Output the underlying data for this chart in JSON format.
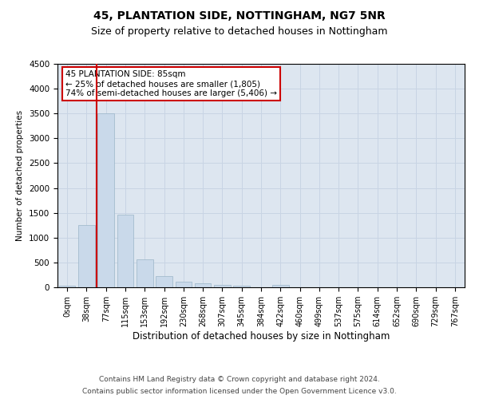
{
  "title": "45, PLANTATION SIDE, NOTTINGHAM, NG7 5NR",
  "subtitle": "Size of property relative to detached houses in Nottingham",
  "xlabel": "Distribution of detached houses by size in Nottingham",
  "ylabel": "Number of detached properties",
  "bar_labels": [
    "0sqm",
    "38sqm",
    "77sqm",
    "115sqm",
    "153sqm",
    "192sqm",
    "230sqm",
    "268sqm",
    "307sqm",
    "345sqm",
    "384sqm",
    "422sqm",
    "460sqm",
    "499sqm",
    "537sqm",
    "575sqm",
    "614sqm",
    "652sqm",
    "690sqm",
    "729sqm",
    "767sqm"
  ],
  "bar_values": [
    30,
    1250,
    3500,
    1470,
    570,
    230,
    110,
    75,
    55,
    30,
    0,
    55,
    0,
    0,
    0,
    0,
    0,
    0,
    0,
    0,
    0
  ],
  "bar_color": "#c9d9ea",
  "bar_edge_color": "#9ab4c8",
  "annotation_text": "45 PLANTATION SIDE: 85sqm\n← 25% of detached houses are smaller (1,805)\n74% of semi-detached houses are larger (5,406) →",
  "annotation_box_color": "white",
  "annotation_box_edge_color": "#cc0000",
  "ylim": [
    0,
    4500
  ],
  "yticks": [
    0,
    500,
    1000,
    1500,
    2000,
    2500,
    3000,
    3500,
    4000,
    4500
  ],
  "red_line_color": "#cc0000",
  "grid_color": "#c8d4e4",
  "background_color": "#dde6f0",
  "footer_line1": "Contains HM Land Registry data © Crown copyright and database right 2024.",
  "footer_line2": "Contains public sector information licensed under the Open Government Licence v3.0.",
  "title_fontsize": 10,
  "subtitle_fontsize": 9
}
